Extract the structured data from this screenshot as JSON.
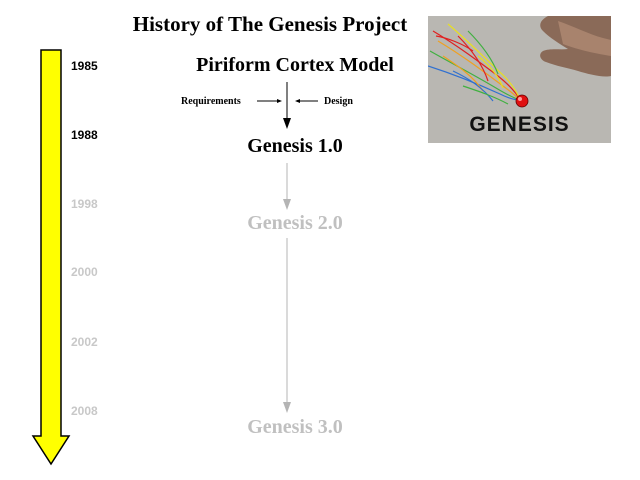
{
  "title": "History of The Genesis Project",
  "years": [
    "1985",
    "1988",
    "1998",
    "2000",
    "2002",
    "2008"
  ],
  "nodes": {
    "piriform": "Piriform Cortex Model",
    "genesis1": "Genesis 1.0",
    "genesis2": "Genesis 2.0",
    "genesis3": "Genesis 3.0"
  },
  "inputs": {
    "requirements": "Requirements",
    "design": "Design"
  },
  "logo": {
    "text": "GENESIS"
  },
  "colors": {
    "timeline_fill": "#ffff00",
    "active_text": "#000000",
    "faded_text": "#c0c0c0",
    "faded_arrow": "#b4b4b4"
  }
}
